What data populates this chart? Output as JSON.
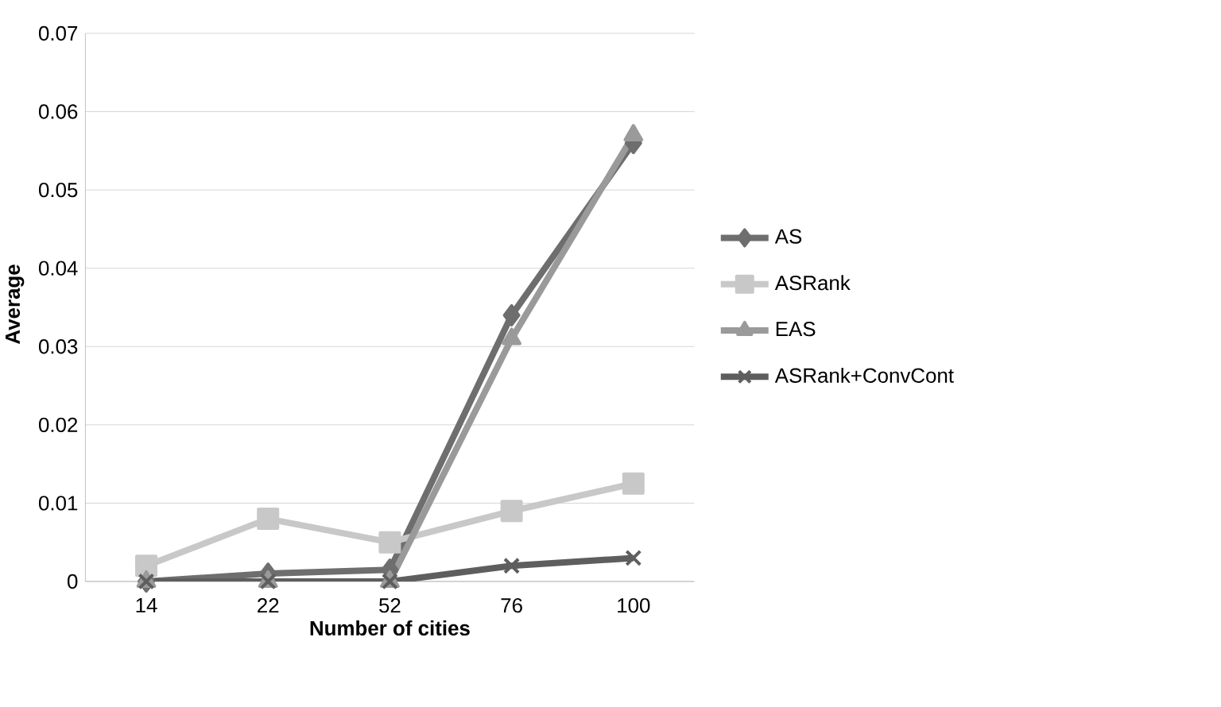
{
  "chart_data": {
    "type": "line",
    "xlabel": "Number of cities",
    "ylabel": "Average",
    "categories": [
      "14",
      "22",
      "52",
      "76",
      "100"
    ],
    "series": [
      {
        "name": "AS",
        "color": "#6e6e6e",
        "marker": "diamond",
        "values": [
          0,
          0.001,
          0.0015,
          0.034,
          0.056
        ]
      },
      {
        "name": "ASRank",
        "color": "#c8c8c8",
        "marker": "square",
        "values": [
          0.002,
          0.008,
          0.005,
          0.009,
          0.0125
        ]
      },
      {
        "name": "EAS",
        "color": "#9a9a9a",
        "marker": "triangle",
        "values": [
          0,
          0,
          0,
          0.031,
          0.057
        ]
      },
      {
        "name": "ASRank+ConvCont",
        "color": "#5e5e5e",
        "marker": "cross",
        "values": [
          0,
          0,
          0,
          0.002,
          0.003
        ]
      }
    ],
    "ylim": [
      0,
      0.07
    ],
    "yticks": [
      0,
      0.01,
      0.02,
      0.03,
      0.04,
      0.05,
      0.06,
      0.07
    ],
    "grid": "y",
    "legend": "right"
  }
}
